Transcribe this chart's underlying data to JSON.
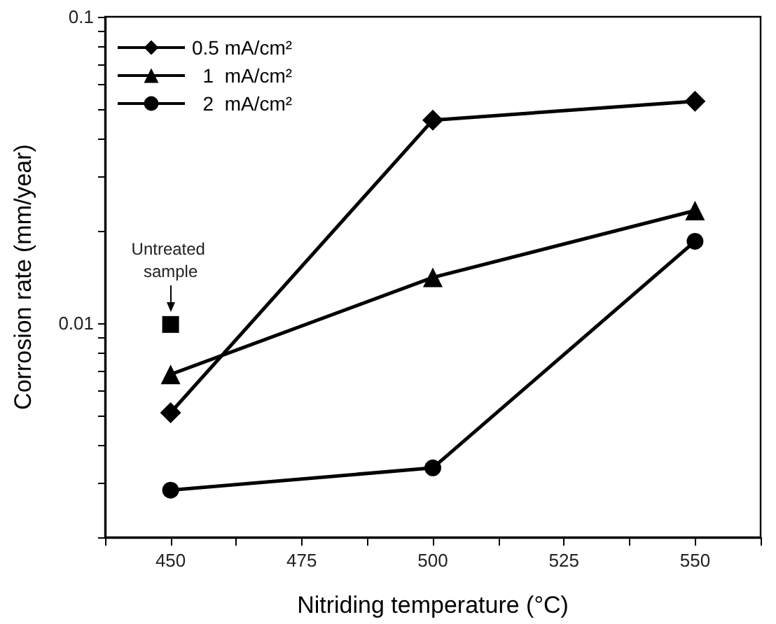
{
  "chart_data": {
    "type": "line",
    "xlabel": "Nitriding temperature (°C)",
    "ylabel": "Corrosion rate (mm/year)",
    "x": [
      450,
      500,
      550
    ],
    "series": [
      {
        "name": "0.5 mA/cm²",
        "color": "#000000",
        "marker": "diamond",
        "values": [
          0.0051,
          0.046,
          0.053
        ]
      },
      {
        "name": "  1  mA/cm²",
        "color": "#000000",
        "marker": "triangle",
        "values": [
          0.0068,
          0.0141,
          0.0233
        ]
      },
      {
        "name": "  2  mA/cm²",
        "color": "#000000",
        "marker": "circle",
        "values": [
          0.00285,
          0.00337,
          0.0185
        ]
      },
      {
        "type": "scatter",
        "color": "#000000",
        "marker": "square",
        "x": [
          450
        ],
        "values": [
          0.0099
        ]
      }
    ],
    "annotations": [
      {
        "text": "Untreated sample",
        "x": 450,
        "y": 0.0099
      }
    ],
    "log": "y",
    "xlim": [
      437.5,
      562.5
    ],
    "ylim": [
      0.002,
      0.1
    ],
    "xticks": [
      {
        "value": 437.5,
        "label": null
      },
      450,
      {
        "value": 462.5,
        "label": null
      },
      475,
      {
        "value": 487.5,
        "label": null
      },
      500,
      {
        "value": 512.5,
        "label": null
      },
      525,
      {
        "value": 537.5,
        "label": null
      },
      550,
      {
        "value": 562.5,
        "label": null
      }
    ],
    "yticks": [
      {
        "value": 0.002,
        "label": null
      },
      {
        "value": 0.003,
        "label": null
      },
      {
        "value": 0.004,
        "label": null
      },
      {
        "value": 0.005,
        "label": null
      },
      {
        "value": 0.006,
        "label": null
      },
      {
        "value": 0.007,
        "label": null
      },
      {
        "value": 0.008,
        "label": null
      },
      {
        "value": 0.009,
        "label": null
      },
      0.01,
      {
        "value": 0.02,
        "label": null
      },
      {
        "value": 0.03,
        "label": null
      },
      {
        "value": 0.04,
        "label": null
      },
      {
        "value": 0.05,
        "label": null
      },
      {
        "value": 0.06,
        "label": null
      },
      {
        "value": 0.07,
        "label": null
      },
      {
        "value": 0.08,
        "label": null
      },
      {
        "value": 0.09,
        "label": null
      },
      0.1
    ],
    "grid": false,
    "legend": "top left"
  }
}
